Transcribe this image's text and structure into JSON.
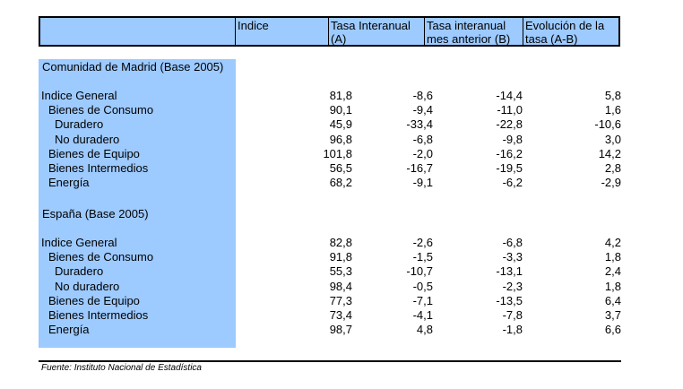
{
  "table": {
    "headers": [
      "",
      "Indice",
      "Tasa Interanual\n(A)",
      "Tasa interanual\nmes anterior (B)",
      "Evolución de la\ntasa (A-B)"
    ],
    "sections": [
      {
        "title": "Comunidad de Madrid (Base 2005)",
        "rows": [
          {
            "label": "Indice General",
            "level": 0,
            "values": [
              "81,8",
              "-8,6",
              "-14,4",
              "5,8"
            ]
          },
          {
            "label": "Bienes de Consumo",
            "level": 1,
            "values": [
              "90,1",
              "-9,4",
              "-11,0",
              "1,6"
            ]
          },
          {
            "label": "Duradero",
            "level": 2,
            "values": [
              "45,9",
              "-33,4",
              "-22,8",
              "-10,6"
            ]
          },
          {
            "label": "No duradero",
            "level": 2,
            "values": [
              "96,8",
              "-6,8",
              "-9,8",
              "3,0"
            ]
          },
          {
            "label": "Bienes de Equipo",
            "level": 1,
            "values": [
              "101,8",
              "-2,0",
              "-16,2",
              "14,2"
            ]
          },
          {
            "label": "Bienes Intermedios",
            "level": 1,
            "values": [
              "56,5",
              "-16,7",
              "-19,5",
              "2,8"
            ]
          },
          {
            "label": "Energía",
            "level": 1,
            "values": [
              "68,2",
              "-9,1",
              "-6,2",
              "-2,9"
            ]
          }
        ]
      },
      {
        "title": "España (Base 2005)",
        "rows": [
          {
            "label": "Indice General",
            "level": 0,
            "values": [
              "82,8",
              "-2,6",
              "-6,8",
              "4,2"
            ]
          },
          {
            "label": "Bienes de Consumo",
            "level": 1,
            "values": [
              "91,8",
              "-1,5",
              "-3,3",
              "1,8"
            ]
          },
          {
            "label": "Duradero",
            "level": 2,
            "values": [
              "55,3",
              "-10,7",
              "-13,1",
              "2,4"
            ]
          },
          {
            "label": "No duradero",
            "level": 2,
            "values": [
              "98,4",
              "-0,5",
              "-2,3",
              "1,8"
            ]
          },
          {
            "label": "Bienes de Equipo",
            "level": 1,
            "values": [
              "77,3",
              "-7,1",
              "-13,5",
              "6,4"
            ]
          },
          {
            "label": "Bienes Intermedios",
            "level": 1,
            "values": [
              "73,4",
              "-4,1",
              "-7,8",
              "3,7"
            ]
          },
          {
            "label": "Energía",
            "level": 1,
            "values": [
              "98,7",
              "4,8",
              "-1,8",
              "6,6"
            ]
          }
        ]
      }
    ]
  },
  "footnote": "Fuente: Instituto Nacional de Estadística",
  "colors": {
    "header_bg": "#9dcaff",
    "label_column_bg": "#9dcaff"
  }
}
